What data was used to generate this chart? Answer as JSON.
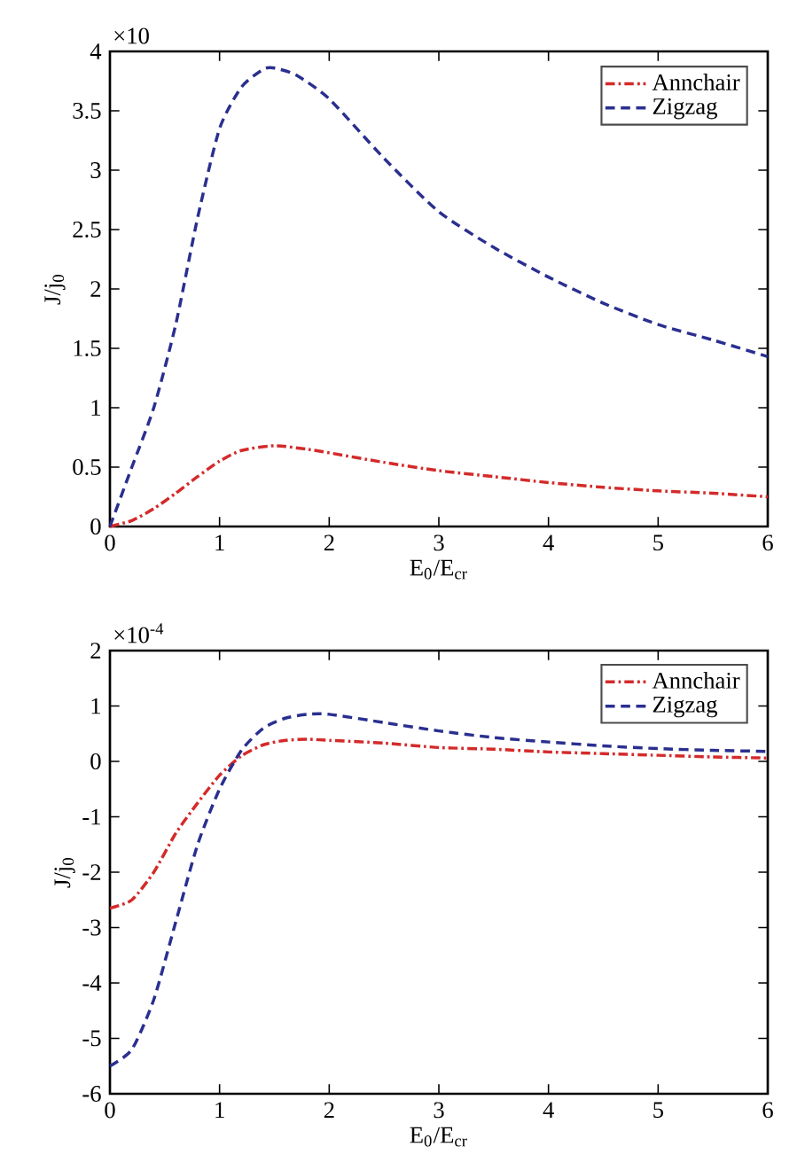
{
  "chart_data": [
    {
      "type": "line",
      "xlabel": "E$_{0}$/E$_{cr}$",
      "ylabel": "J/j$_{0}$",
      "annotations": [
        "×10"
      ],
      "xlim": [
        0,
        6
      ],
      "ylim": [
        0,
        4
      ],
      "xticks": [
        0,
        1,
        2,
        3,
        4,
        5,
        6
      ],
      "yticks": [
        0,
        0.5,
        1,
        1.5,
        2,
        2.5,
        3,
        3.5,
        4
      ],
      "legend": "top right",
      "grid": false,
      "marker": "none",
      "series": [
        {
          "name": "Annchair",
          "color": "#d42a2a",
          "line_style": "dashdot",
          "x": [
            0,
            0.2,
            0.4,
            0.6,
            0.8,
            1.0,
            1.2,
            1.5,
            1.8,
            2.0,
            2.5,
            3.0,
            3.5,
            4.0,
            4.5,
            5.0,
            5.5,
            6.0
          ],
          "values": [
            0,
            0.05,
            0.15,
            0.28,
            0.42,
            0.55,
            0.64,
            0.68,
            0.65,
            0.62,
            0.54,
            0.47,
            0.42,
            0.37,
            0.33,
            0.3,
            0.28,
            0.25
          ]
        },
        {
          "name": "Zigzag",
          "color": "#2a2f8f",
          "line_style": "dashed",
          "x": [
            0,
            0.2,
            0.4,
            0.6,
            0.8,
            1.0,
            1.2,
            1.4,
            1.5,
            1.7,
            2.0,
            2.5,
            3.0,
            3.5,
            4.0,
            4.5,
            5.0,
            5.5,
            6.0
          ],
          "values": [
            0,
            0.5,
            1.0,
            1.7,
            2.6,
            3.35,
            3.7,
            3.85,
            3.86,
            3.8,
            3.6,
            3.1,
            2.65,
            2.35,
            2.1,
            1.88,
            1.7,
            1.57,
            1.43
          ]
        }
      ]
    },
    {
      "type": "line",
      "xlabel": "E$_{0}$/E$_{cr}$",
      "ylabel": "J/j$_{0}$",
      "annotations": [
        "×10$^{-4}$"
      ],
      "xlim": [
        0,
        6
      ],
      "ylim": [
        -6,
        2
      ],
      "xticks": [
        0,
        1,
        2,
        3,
        4,
        5,
        6
      ],
      "yticks": [
        -6,
        -5,
        -4,
        -3,
        -2,
        -1,
        0,
        1,
        2
      ],
      "legend": "top right",
      "grid": false,
      "marker": "none",
      "series": [
        {
          "name": "Annchair",
          "color": "#d42a2a",
          "line_style": "dashdot",
          "x": [
            0,
            0.2,
            0.4,
            0.6,
            0.8,
            1.0,
            1.2,
            1.4,
            1.6,
            1.8,
            2.0,
            2.5,
            3.0,
            3.5,
            4.0,
            4.5,
            5.0,
            5.5,
            6.0
          ],
          "values": [
            -2.65,
            -2.5,
            -2.0,
            -1.3,
            -0.75,
            -0.25,
            0.1,
            0.3,
            0.38,
            0.4,
            0.38,
            0.33,
            0.25,
            0.22,
            0.17,
            0.14,
            0.11,
            0.08,
            0.06
          ]
        },
        {
          "name": "Zigzag",
          "color": "#2a2f8f",
          "line_style": "dashed",
          "x": [
            0,
            0.2,
            0.4,
            0.6,
            0.8,
            1.0,
            1.2,
            1.4,
            1.6,
            1.8,
            2.0,
            2.5,
            3.0,
            3.5,
            4.0,
            4.5,
            5.0,
            5.5,
            6.0
          ],
          "values": [
            -5.5,
            -5.2,
            -4.3,
            -2.9,
            -1.5,
            -0.5,
            0.2,
            0.6,
            0.78,
            0.85,
            0.85,
            0.7,
            0.55,
            0.43,
            0.35,
            0.28,
            0.23,
            0.2,
            0.18
          ]
        }
      ]
    }
  ]
}
